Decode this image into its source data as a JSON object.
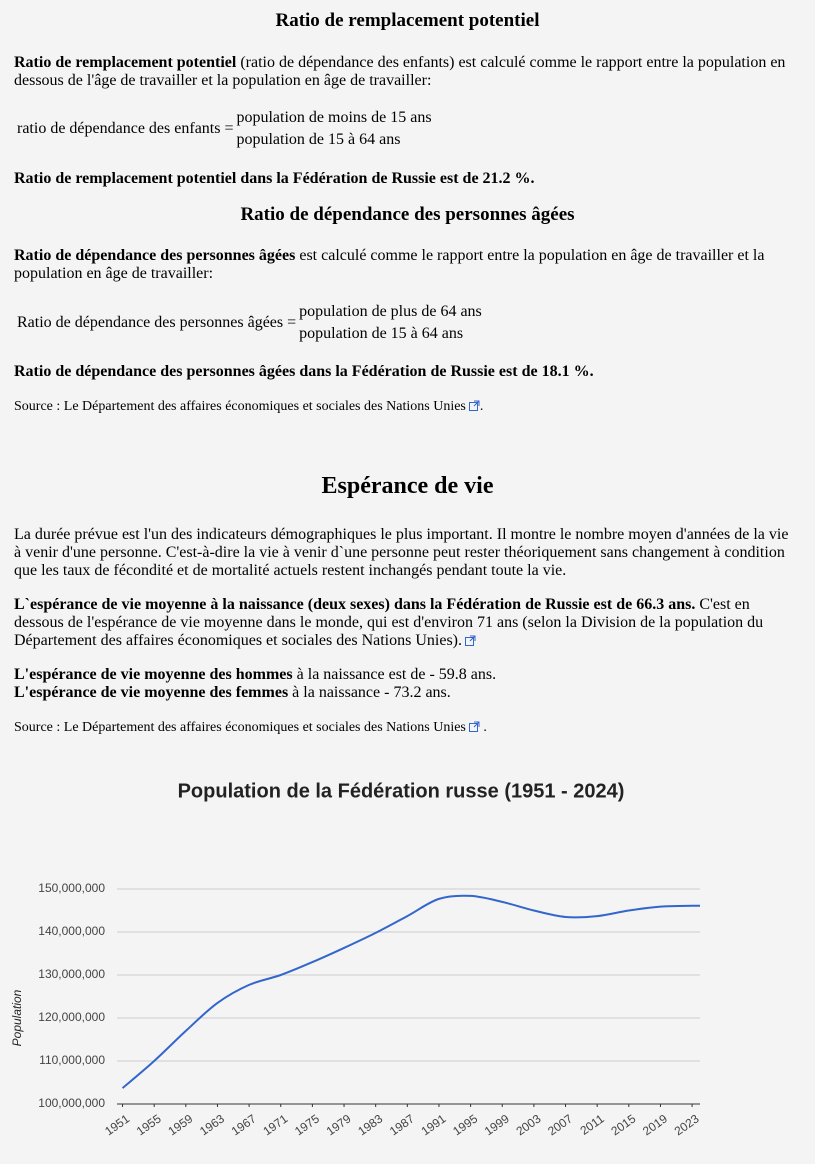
{
  "replacement": {
    "title": "Ratio de remplacement potentiel",
    "intro_bold": "Ratio de remplacement potentiel",
    "intro_rest": "(ratio de dépendance des enfants) est calculé comme le rapport entre la population en dessous de l'âge de travailler et la population en âge de travailler:",
    "formula_label": "ratio de dépendance des enfants =",
    "numerator": "population de moins de 15 ans",
    "denominator": "population de 15 à 64 ans",
    "result": "Ratio de remplacement potentiel dans la Fédération de Russie est de 21.2 %."
  },
  "elderly": {
    "title": "Ratio de dépendance des personnes âgées",
    "intro_bold": "Ratio de dépendance des personnes âgées",
    "intro_rest": "est calculé comme le rapport entre la population en âge de travailler et la population en âge de travailler:",
    "formula_label": "Ratio de dépendance des personnes âgées =",
    "numerator": "population de plus de 64 ans",
    "denominator": "population de 15 à 64 ans",
    "result": "Ratio de dépendance des personnes âgées dans la Fédération de Russie est de 18.1 %.",
    "source": "Source : Le Département des affaires économiques et sociales des Nations Unies",
    "source_end": "."
  },
  "life": {
    "title": "Espérance de vie",
    "p1": "La durée prévue est l'un des indicateurs démographiques le plus important. Il montre le nombre moyen d'années de la vie à venir d'une personne. C'est-à-dire la vie à venir d`une personne peut rester théoriquement sans changement à condition que les taux de fécondité et de mortalité actuels restent inchangés pendant toute la vie.",
    "p2_bold": "L`espérance de vie moyenne à la naissance (deux sexes) dans la Fédération de Russie est de 66.3 ans.",
    "p2_rest": "C'est en dessous de l'espérance de vie moyenne dans le monde, qui est d'environ 71 ans (selon la Division de la population du Département des affaires économiques et sociales des Nations Unies).",
    "men_bold": "L'espérance de vie moyenne des hommes",
    "men_rest": "à la naissance est de - 59.8 ans.",
    "women_bold": "L'espérance de vie moyenne des femmes",
    "women_rest": "à la naissance - 73.2 ans.",
    "source": "Source : Le Département des affaires économiques et sociales des Nations Unies",
    "source_end": "."
  },
  "chart_data": {
    "type": "line",
    "title": "Population de la Fédération russe (1951 - 2024)",
    "y_label": "Population",
    "x": [
      1951,
      1955,
      1959,
      1963,
      1967,
      1971,
      1975,
      1979,
      1983,
      1987,
      1991,
      1995,
      1999,
      2003,
      2007,
      2011,
      2015,
      2019,
      2023,
      2024
    ],
    "values": [
      103700000,
      110000000,
      117000000,
      123500000,
      127700000,
      130000000,
      133000000,
      136300000,
      139800000,
      143700000,
      147700000,
      148400000,
      147000000,
      145000000,
      143500000,
      143700000,
      145000000,
      145900000,
      146100000,
      146100000
    ],
    "color": "#3366cc",
    "xlim": [
      1950.3,
      2024
    ],
    "ylim": [
      100000000,
      150000000
    ],
    "xticks": [
      1951,
      1955,
      1959,
      1963,
      1967,
      1971,
      1975,
      1979,
      1983,
      1987,
      1991,
      1995,
      1999,
      2003,
      2007,
      2011,
      2015,
      2019,
      2023
    ],
    "yticks": [
      {
        "value": 100000000,
        "label": "100,000,000"
      },
      {
        "value": 110000000,
        "label": "110,000,000"
      },
      {
        "value": 120000000,
        "label": "120,000,000"
      },
      {
        "value": 130000000,
        "label": "130,000,000"
      },
      {
        "value": 140000000,
        "label": "140,000,000"
      },
      {
        "value": 150000000,
        "label": "150,000,000"
      }
    ],
    "grid": true
  }
}
